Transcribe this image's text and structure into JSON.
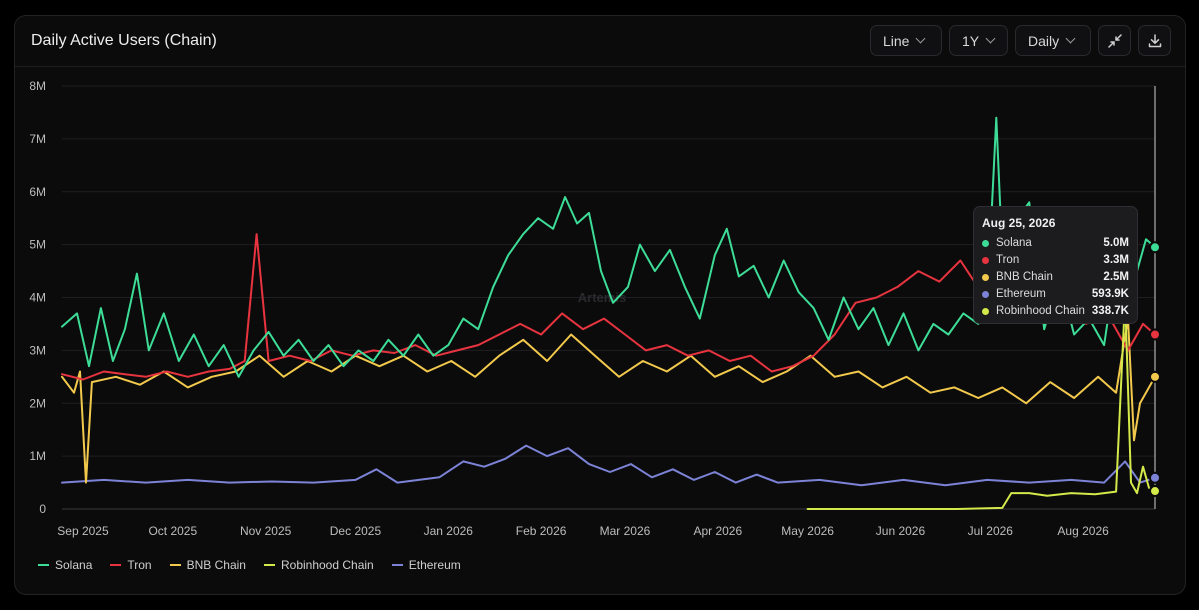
{
  "header": {
    "title": "Daily Active Users (Chain)",
    "chart_type_select": "Line",
    "range_select": "1Y",
    "interval_select": "Daily",
    "collapse_icon": "collapse-icon",
    "download_icon": "download-icon"
  },
  "watermark": "Artemis",
  "colors": {
    "solana": "#3ddc97",
    "tron": "#e8343f",
    "bnb": "#f2c94c",
    "ethereum": "#7c83d6",
    "robinhood": "#d4e94a"
  },
  "tooltip": {
    "date": "Aug 25, 2026",
    "rows": [
      {
        "name": "Solana",
        "value": "5.0M",
        "color": "#3ddc97"
      },
      {
        "name": "Tron",
        "value": "3.3M",
        "color": "#e8343f"
      },
      {
        "name": "BNB Chain",
        "value": "2.5M",
        "color": "#f2c94c"
      },
      {
        "name": "Ethereum",
        "value": "593.9K",
        "color": "#7c83d6"
      },
      {
        "name": "Robinhood Chain",
        "value": "338.7K",
        "color": "#d4e94a"
      }
    ]
  },
  "legend": [
    {
      "name": "Solana",
      "color": "#3ddc97"
    },
    {
      "name": "Tron",
      "color": "#e8343f"
    },
    {
      "name": "BNB Chain",
      "color": "#f2c94c"
    },
    {
      "name": "Robinhood Chain",
      "color": "#d4e94a"
    },
    {
      "name": "Ethereum",
      "color": "#7c83d6"
    }
  ],
  "chart_data": {
    "type": "line",
    "title": "Daily Active Users (Chain)",
    "x_tick_labels": [
      "Sep 2025",
      "Oct 2025",
      "Nov 2025",
      "Dec 2025",
      "Jan 2026",
      "Feb 2026",
      "Mar 2026",
      "Apr 2026",
      "May 2026",
      "Jun 2026",
      "Jul 2026",
      "Aug 2026"
    ],
    "y_tick_labels": [
      "0",
      "1M",
      "2M",
      "3M",
      "4M",
      "5M",
      "6M",
      "7M",
      "8M"
    ],
    "ylim": [
      0,
      8000000
    ],
    "xlim": [
      "2025-08-25",
      "2026-08-25"
    ],
    "grid": "horizontal",
    "legend_position": "bottom-left",
    "series": [
      {
        "name": "Solana",
        "color": "#3ddc97",
        "points": [
          [
            "2025-08-25",
            3.45
          ],
          [
            "2025-08-30",
            3.7
          ],
          [
            "2025-09-03",
            2.7
          ],
          [
            "2025-09-07",
            3.8
          ],
          [
            "2025-09-11",
            2.8
          ],
          [
            "2025-09-15",
            3.4
          ],
          [
            "2025-09-19",
            4.45
          ],
          [
            "2025-09-23",
            3.0
          ],
          [
            "2025-09-28",
            3.7
          ],
          [
            "2025-10-03",
            2.8
          ],
          [
            "2025-10-08",
            3.3
          ],
          [
            "2025-10-13",
            2.7
          ],
          [
            "2025-10-18",
            3.1
          ],
          [
            "2025-10-23",
            2.5
          ],
          [
            "2025-10-28",
            3.0
          ],
          [
            "2025-11-02",
            3.35
          ],
          [
            "2025-11-07",
            2.9
          ],
          [
            "2025-11-12",
            3.2
          ],
          [
            "2025-11-17",
            2.8
          ],
          [
            "2025-11-22",
            3.1
          ],
          [
            "2025-11-27",
            2.7
          ],
          [
            "2025-12-02",
            3.0
          ],
          [
            "2025-12-07",
            2.8
          ],
          [
            "2025-12-12",
            3.2
          ],
          [
            "2025-12-17",
            2.9
          ],
          [
            "2025-12-22",
            3.3
          ],
          [
            "2025-12-27",
            2.9
          ],
          [
            "2026-01-01",
            3.1
          ],
          [
            "2026-01-06",
            3.6
          ],
          [
            "2026-01-11",
            3.4
          ],
          [
            "2026-01-16",
            4.2
          ],
          [
            "2026-01-21",
            4.8
          ],
          [
            "2026-01-26",
            5.2
          ],
          [
            "2026-01-31",
            5.5
          ],
          [
            "2026-02-05",
            5.3
          ],
          [
            "2026-02-09",
            5.9
          ],
          [
            "2026-02-13",
            5.4
          ],
          [
            "2026-02-17",
            5.6
          ],
          [
            "2026-02-21",
            4.5
          ],
          [
            "2026-02-25",
            3.9
          ],
          [
            "2026-03-02",
            4.2
          ],
          [
            "2026-03-06",
            5.0
          ],
          [
            "2026-03-11",
            4.5
          ],
          [
            "2026-03-16",
            4.9
          ],
          [
            "2026-03-21",
            4.2
          ],
          [
            "2026-03-26",
            3.6
          ],
          [
            "2026-03-31",
            4.8
          ],
          [
            "2026-04-04",
            5.3
          ],
          [
            "2026-04-08",
            4.4
          ],
          [
            "2026-04-13",
            4.6
          ],
          [
            "2026-04-18",
            4.0
          ],
          [
            "2026-04-23",
            4.7
          ],
          [
            "2026-04-28",
            4.1
          ],
          [
            "2026-05-03",
            3.8
          ],
          [
            "2026-05-08",
            3.2
          ],
          [
            "2026-05-13",
            4.0
          ],
          [
            "2026-05-18",
            3.4
          ],
          [
            "2026-05-23",
            3.8
          ],
          [
            "2026-05-28",
            3.1
          ],
          [
            "2026-06-02",
            3.7
          ],
          [
            "2026-06-07",
            3.0
          ],
          [
            "2026-06-12",
            3.5
          ],
          [
            "2026-06-17",
            3.3
          ],
          [
            "2026-06-22",
            3.7
          ],
          [
            "2026-06-27",
            3.5
          ],
          [
            "2026-07-01",
            5.1
          ],
          [
            "2026-07-03",
            7.4
          ],
          [
            "2026-07-05",
            4.8
          ],
          [
            "2026-07-09",
            5.4
          ],
          [
            "2026-07-14",
            5.8
          ],
          [
            "2026-07-19",
            3.4
          ],
          [
            "2026-07-24",
            4.4
          ],
          [
            "2026-07-29",
            3.3
          ],
          [
            "2026-08-03",
            3.6
          ],
          [
            "2026-08-08",
            3.1
          ],
          [
            "2026-08-13",
            5.0
          ],
          [
            "2026-08-18",
            4.3
          ],
          [
            "2026-08-22",
            5.1
          ],
          [
            "2026-08-25",
            4.95
          ]
        ]
      },
      {
        "name": "Tron",
        "color": "#e8343f",
        "points": [
          [
            "2025-08-25",
            2.55
          ],
          [
            "2025-09-01",
            2.45
          ],
          [
            "2025-09-08",
            2.6
          ],
          [
            "2025-09-15",
            2.55
          ],
          [
            "2025-09-22",
            2.5
          ],
          [
            "2025-09-29",
            2.6
          ],
          [
            "2025-10-06",
            2.5
          ],
          [
            "2025-10-13",
            2.6
          ],
          [
            "2025-10-20",
            2.65
          ],
          [
            "2025-10-25",
            2.8
          ],
          [
            "2025-10-29",
            5.2
          ],
          [
            "2025-11-02",
            2.8
          ],
          [
            "2025-11-09",
            2.9
          ],
          [
            "2025-11-16",
            2.8
          ],
          [
            "2025-11-23",
            3.0
          ],
          [
            "2025-11-30",
            2.9
          ],
          [
            "2025-12-07",
            3.0
          ],
          [
            "2025-12-14",
            2.95
          ],
          [
            "2025-12-21",
            3.1
          ],
          [
            "2025-12-28",
            2.9
          ],
          [
            "2026-01-04",
            3.0
          ],
          [
            "2026-01-11",
            3.1
          ],
          [
            "2026-01-18",
            3.3
          ],
          [
            "2026-01-25",
            3.5
          ],
          [
            "2026-02-01",
            3.3
          ],
          [
            "2026-02-08",
            3.7
          ],
          [
            "2026-02-15",
            3.4
          ],
          [
            "2026-02-22",
            3.6
          ],
          [
            "2026-03-01",
            3.3
          ],
          [
            "2026-03-08",
            3.0
          ],
          [
            "2026-03-15",
            3.1
          ],
          [
            "2026-03-22",
            2.9
          ],
          [
            "2026-03-29",
            3.0
          ],
          [
            "2026-04-05",
            2.8
          ],
          [
            "2026-04-12",
            2.9
          ],
          [
            "2026-04-19",
            2.6
          ],
          [
            "2026-04-26",
            2.7
          ],
          [
            "2026-05-03",
            2.9
          ],
          [
            "2026-05-10",
            3.3
          ],
          [
            "2026-05-17",
            3.9
          ],
          [
            "2026-05-24",
            4.0
          ],
          [
            "2026-05-31",
            4.2
          ],
          [
            "2026-06-07",
            4.5
          ],
          [
            "2026-06-14",
            4.3
          ],
          [
            "2026-06-21",
            4.7
          ],
          [
            "2026-06-28",
            4.1
          ],
          [
            "2026-07-05",
            4.0
          ],
          [
            "2026-07-12",
            4.4
          ],
          [
            "2026-07-19",
            3.6
          ],
          [
            "2026-07-26",
            3.9
          ],
          [
            "2026-08-02",
            3.5
          ],
          [
            "2026-08-09",
            3.7
          ],
          [
            "2026-08-16",
            3.0
          ],
          [
            "2026-08-21",
            3.5
          ],
          [
            "2026-08-25",
            3.3
          ]
        ]
      },
      {
        "name": "BNB Chain",
        "color": "#f2c94c",
        "points": [
          [
            "2025-08-25",
            2.5
          ],
          [
            "2025-08-29",
            2.2
          ],
          [
            "2025-08-31",
            2.6
          ],
          [
            "2025-09-02",
            0.5
          ],
          [
            "2025-09-04",
            2.4
          ],
          [
            "2025-09-12",
            2.5
          ],
          [
            "2025-09-20",
            2.35
          ],
          [
            "2025-09-28",
            2.6
          ],
          [
            "2025-10-06",
            2.3
          ],
          [
            "2025-10-14",
            2.5
          ],
          [
            "2025-10-22",
            2.6
          ],
          [
            "2025-10-30",
            2.9
          ],
          [
            "2025-11-07",
            2.5
          ],
          [
            "2025-11-15",
            2.8
          ],
          [
            "2025-11-23",
            2.6
          ],
          [
            "2025-12-01",
            2.9
          ],
          [
            "2025-12-09",
            2.7
          ],
          [
            "2025-12-17",
            2.9
          ],
          [
            "2025-12-25",
            2.6
          ],
          [
            "2026-01-02",
            2.8
          ],
          [
            "2026-01-10",
            2.5
          ],
          [
            "2026-01-18",
            2.9
          ],
          [
            "2026-01-26",
            3.2
          ],
          [
            "2026-02-03",
            2.8
          ],
          [
            "2026-02-11",
            3.3
          ],
          [
            "2026-02-19",
            2.9
          ],
          [
            "2026-02-27",
            2.5
          ],
          [
            "2026-03-07",
            2.8
          ],
          [
            "2026-03-15",
            2.6
          ],
          [
            "2026-03-23",
            2.9
          ],
          [
            "2026-03-31",
            2.5
          ],
          [
            "2026-04-08",
            2.7
          ],
          [
            "2026-04-16",
            2.4
          ],
          [
            "2026-04-24",
            2.6
          ],
          [
            "2026-05-02",
            2.9
          ],
          [
            "2026-05-10",
            2.5
          ],
          [
            "2026-05-18",
            2.6
          ],
          [
            "2026-05-26",
            2.3
          ],
          [
            "2026-06-03",
            2.5
          ],
          [
            "2026-06-11",
            2.2
          ],
          [
            "2026-06-19",
            2.3
          ],
          [
            "2026-06-27",
            2.1
          ],
          [
            "2026-07-05",
            2.3
          ],
          [
            "2026-07-13",
            2.0
          ],
          [
            "2026-07-21",
            2.4
          ],
          [
            "2026-07-29",
            2.1
          ],
          [
            "2026-08-06",
            2.5
          ],
          [
            "2026-08-12",
            2.2
          ],
          [
            "2026-08-16",
            3.6
          ],
          [
            "2026-08-18",
            1.3
          ],
          [
            "2026-08-20",
            2.0
          ],
          [
            "2026-08-25",
            2.5
          ]
        ]
      },
      {
        "name": "Robinhood Chain",
        "color": "#d4e94a",
        "points": [
          [
            "2026-05-01",
            0.0
          ],
          [
            "2026-06-20",
            0.0
          ],
          [
            "2026-07-05",
            0.02
          ],
          [
            "2026-07-08",
            0.3
          ],
          [
            "2026-07-14",
            0.3
          ],
          [
            "2026-07-20",
            0.25
          ],
          [
            "2026-07-28",
            0.3
          ],
          [
            "2026-08-05",
            0.28
          ],
          [
            "2026-08-12",
            0.33
          ],
          [
            "2026-08-15",
            4.0
          ],
          [
            "2026-08-17",
            0.5
          ],
          [
            "2026-08-19",
            0.3
          ],
          [
            "2026-08-21",
            0.8
          ],
          [
            "2026-08-23",
            0.4
          ],
          [
            "2026-08-25",
            0.34
          ]
        ]
      },
      {
        "name": "Ethereum",
        "color": "#7c83d6",
        "points": [
          [
            "2025-08-25",
            0.5
          ],
          [
            "2025-09-08",
            0.55
          ],
          [
            "2025-09-22",
            0.5
          ],
          [
            "2025-10-06",
            0.55
          ],
          [
            "2025-10-20",
            0.5
          ],
          [
            "2025-11-03",
            0.52
          ],
          [
            "2025-11-17",
            0.5
          ],
          [
            "2025-12-01",
            0.55
          ],
          [
            "2025-12-08",
            0.75
          ],
          [
            "2025-12-15",
            0.5
          ],
          [
            "2025-12-29",
            0.6
          ],
          [
            "2026-01-06",
            0.9
          ],
          [
            "2026-01-13",
            0.8
          ],
          [
            "2026-01-20",
            0.95
          ],
          [
            "2026-01-27",
            1.2
          ],
          [
            "2026-02-03",
            1.0
          ],
          [
            "2026-02-10",
            1.15
          ],
          [
            "2026-02-17",
            0.85
          ],
          [
            "2026-02-24",
            0.7
          ],
          [
            "2026-03-03",
            0.85
          ],
          [
            "2026-03-10",
            0.6
          ],
          [
            "2026-03-17",
            0.75
          ],
          [
            "2026-03-24",
            0.55
          ],
          [
            "2026-03-31",
            0.7
          ],
          [
            "2026-04-07",
            0.5
          ],
          [
            "2026-04-14",
            0.65
          ],
          [
            "2026-04-21",
            0.5
          ],
          [
            "2026-05-05",
            0.55
          ],
          [
            "2026-05-19",
            0.45
          ],
          [
            "2026-06-02",
            0.55
          ],
          [
            "2026-06-16",
            0.45
          ],
          [
            "2026-06-30",
            0.55
          ],
          [
            "2026-07-14",
            0.5
          ],
          [
            "2026-07-28",
            0.55
          ],
          [
            "2026-08-08",
            0.5
          ],
          [
            "2026-08-15",
            0.9
          ],
          [
            "2026-08-20",
            0.5
          ],
          [
            "2026-08-25",
            0.59
          ]
        ]
      }
    ]
  }
}
